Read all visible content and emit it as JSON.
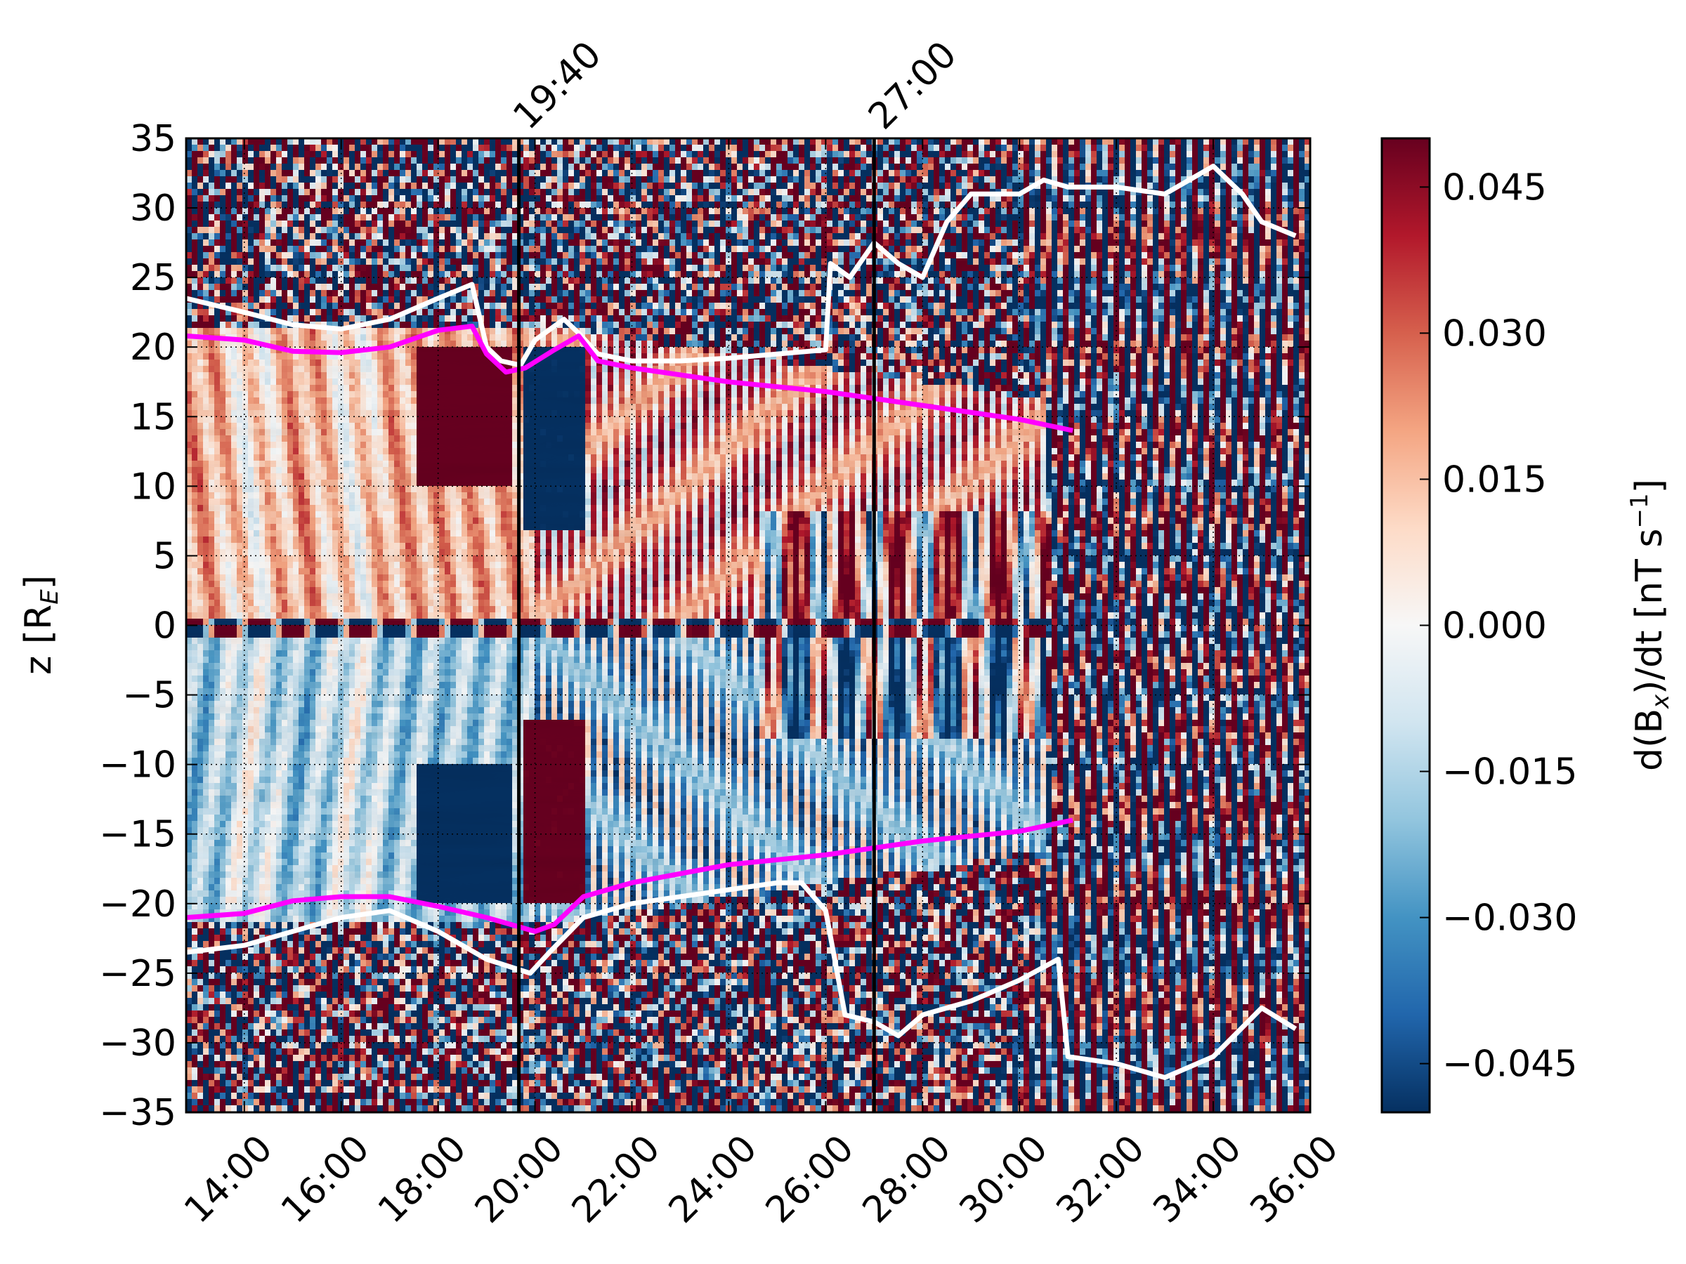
{
  "chart_data": {
    "type": "heatmap",
    "title": "",
    "xlabel": "",
    "ylabel": "z [R_E]",
    "ylabel_parts": {
      "main": "z [R",
      "sub": "E",
      "close": "]"
    },
    "x_tick_labels": [
      "14:00",
      "16:00",
      "18:00",
      "20:00",
      "22:00",
      "24:00",
      "26:00",
      "28:00",
      "30:00",
      "32:00",
      "34:00",
      "36:00"
    ],
    "x_tick_hours": [
      14,
      16,
      18,
      20,
      22,
      24,
      26,
      28,
      30,
      32,
      34,
      36
    ],
    "xlim_hours": [
      12.8,
      36.0
    ],
    "ylim": [
      -35,
      35
    ],
    "y_ticks": [
      35,
      30,
      25,
      20,
      15,
      10,
      5,
      0,
      -5,
      -10,
      -15,
      -20,
      -25,
      -30,
      -35
    ],
    "y_tick_labels": [
      "35",
      "30",
      "25",
      "20",
      "15",
      "10",
      "5",
      "0",
      "−5",
      "−10",
      "−15",
      "−20",
      "−25",
      "−30",
      "−35"
    ],
    "grid": true,
    "markers": [
      {
        "label": "19:40",
        "hour": 19.667
      },
      {
        "label": "27:00",
        "hour": 27.0
      }
    ],
    "colorbar": {
      "label": "d(B_x)/dt [nT s^-1]",
      "label_parts": {
        "a": "d(B",
        "sub": "x",
        "b": ")/dt [nT s",
        "sup": "−1",
        "c": "]"
      },
      "range": [
        -0.05,
        0.05
      ],
      "ticks": [
        0.045,
        0.03,
        0.015,
        0.0,
        -0.015,
        -0.03,
        -0.045
      ],
      "tick_labels": [
        "0.045",
        "0.030",
        "0.015",
        "0.000",
        "−0.015",
        "−0.030",
        "−0.045"
      ],
      "colormap": [
        "#053061",
        "#2166ac",
        "#4393c3",
        "#92c5de",
        "#d1e5f0",
        "#f7f7f7",
        "#fddbc7",
        "#f4a582",
        "#d6604d",
        "#b2182b",
        "#67001f"
      ]
    },
    "series": [
      {
        "color": "#ffffff",
        "upper": [
          [
            12.8,
            23.5
          ],
          [
            14,
            22.5
          ],
          [
            15,
            21.6
          ],
          [
            16,
            21.3
          ],
          [
            17,
            22.0
          ],
          [
            18,
            23.5
          ],
          [
            18.7,
            24.5
          ],
          [
            19.0,
            20.0
          ],
          [
            19.3,
            19.0
          ],
          [
            19.7,
            18.7
          ],
          [
            20.0,
            20.5
          ],
          [
            20.6,
            22.0
          ],
          [
            20.9,
            21.0
          ],
          [
            21.3,
            19.5
          ],
          [
            22,
            19.0
          ],
          [
            23,
            19.0
          ],
          [
            24,
            19.2
          ],
          [
            25,
            19.5
          ],
          [
            26,
            19.8
          ],
          [
            26.1,
            26
          ],
          [
            26.5,
            25
          ],
          [
            27,
            27.5
          ],
          [
            27.5,
            26
          ],
          [
            28,
            25
          ],
          [
            28.5,
            29
          ],
          [
            29,
            31
          ],
          [
            30,
            31
          ],
          [
            30.5,
            32
          ],
          [
            31,
            31.5
          ],
          [
            32,
            31.5
          ],
          [
            33,
            31
          ],
          [
            34,
            33
          ],
          [
            34.6,
            31
          ],
          [
            35,
            29
          ],
          [
            35.7,
            28
          ]
        ],
        "lower": [
          [
            12.8,
            -23.5
          ],
          [
            14,
            -23.0
          ],
          [
            15,
            -22.0
          ],
          [
            16,
            -21.0
          ],
          [
            17,
            -20.5
          ],
          [
            18,
            -22.0
          ],
          [
            19,
            -24.0
          ],
          [
            19.9,
            -25.0
          ],
          [
            20.3,
            -23.5
          ],
          [
            21,
            -21.0
          ],
          [
            22,
            -20.0
          ],
          [
            23,
            -19.5
          ],
          [
            24,
            -19.0
          ],
          [
            25,
            -18.5
          ],
          [
            25.5,
            -18.5
          ],
          [
            26,
            -20.5
          ],
          [
            26.4,
            -28
          ],
          [
            27,
            -28.5
          ],
          [
            27.5,
            -29.5
          ],
          [
            28,
            -28
          ],
          [
            29,
            -27
          ],
          [
            30,
            -25.5
          ],
          [
            30.8,
            -24
          ],
          [
            31,
            -31
          ],
          [
            32,
            -31.5
          ],
          [
            33,
            -32.5
          ],
          [
            34,
            -31.0
          ],
          [
            35,
            -27.5
          ],
          [
            35.7,
            -29
          ]
        ]
      },
      {
        "color": "#ff00ff",
        "upper": [
          [
            12.8,
            20.8
          ],
          [
            14,
            20.5
          ],
          [
            15,
            19.7
          ],
          [
            16,
            19.6
          ],
          [
            17,
            20.0
          ],
          [
            18,
            21.2
          ],
          [
            18.7,
            21.5
          ],
          [
            19.0,
            19.5
          ],
          [
            19.4,
            18.2
          ],
          [
            19.8,
            18.5
          ],
          [
            20.4,
            19.8
          ],
          [
            20.9,
            20.8
          ],
          [
            21.3,
            19.0
          ],
          [
            22,
            18.5
          ],
          [
            24,
            17.5
          ],
          [
            26,
            16.8
          ],
          [
            28,
            15.8
          ],
          [
            30,
            14.8
          ],
          [
            31.1,
            14.0
          ]
        ],
        "lower": [
          [
            12.8,
            -21.0
          ],
          [
            14,
            -20.7
          ],
          [
            15,
            -19.8
          ],
          [
            16,
            -19.5
          ],
          [
            17,
            -19.5
          ],
          [
            18,
            -20.2
          ],
          [
            19,
            -21.0
          ],
          [
            20,
            -22.0
          ],
          [
            20.4,
            -21.5
          ],
          [
            21,
            -19.5
          ],
          [
            22,
            -18.5
          ],
          [
            24,
            -17.2
          ],
          [
            26,
            -16.5
          ],
          [
            28,
            -15.5
          ],
          [
            30,
            -14.8
          ],
          [
            31.1,
            -14.0
          ]
        ]
      }
    ]
  }
}
